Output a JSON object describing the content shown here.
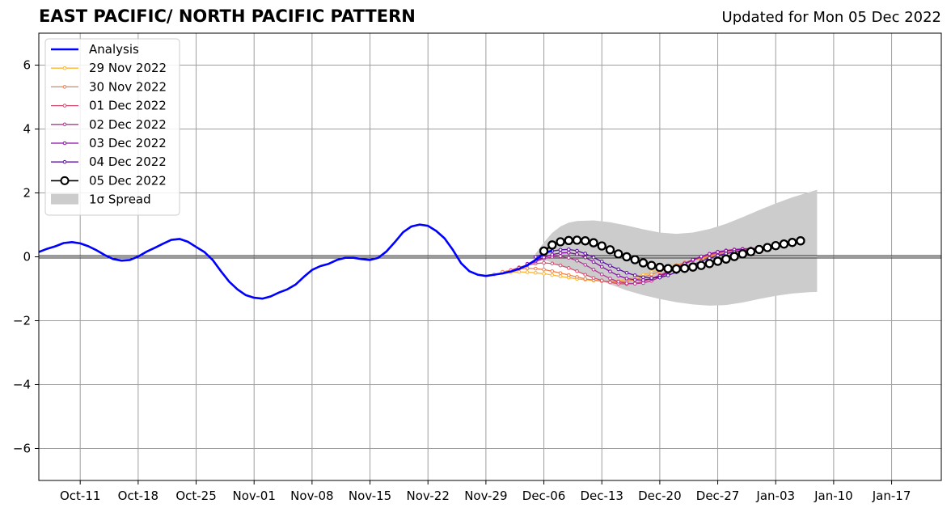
{
  "header": {
    "title": "EAST PACIFIC/ NORTH PACIFIC PATTERN",
    "updated": "Updated for Mon 05 Dec 2022"
  },
  "chart_data": {
    "type": "line",
    "title": "EAST PACIFIC/ NORTH PACIFIC PATTERN",
    "subtitle": "Updated for Mon 05 Dec 2022",
    "xlabel": "",
    "ylabel": "",
    "x_range": [
      "2022-10-06",
      "2023-01-23"
    ],
    "ylim": [
      -7,
      7
    ],
    "yticks": [
      6,
      4,
      2,
      0,
      -2,
      -4,
      -6
    ],
    "ytick_labels": [
      "6",
      "4",
      "2",
      "0",
      "−2",
      "−4",
      "−6"
    ],
    "xticks": [
      {
        "date": "2022-10-11",
        "label": "Oct-11"
      },
      {
        "date": "2022-10-18",
        "label": "Oct-18"
      },
      {
        "date": "2022-10-25",
        "label": "Oct-25"
      },
      {
        "date": "2022-11-01",
        "label": "Nov-01"
      },
      {
        "date": "2022-11-08",
        "label": "Nov-08"
      },
      {
        "date": "2022-11-15",
        "label": "Nov-15"
      },
      {
        "date": "2022-11-22",
        "label": "Nov-22"
      },
      {
        "date": "2022-11-29",
        "label": "Nov-29"
      },
      {
        "date": "2022-12-06",
        "label": "Dec-06"
      },
      {
        "date": "2022-12-13",
        "label": "Dec-13"
      },
      {
        "date": "2022-12-20",
        "label": "Dec-20"
      },
      {
        "date": "2022-12-27",
        "label": "Dec-27"
      },
      {
        "date": "2023-01-03",
        "label": "Jan-03"
      },
      {
        "date": "2023-01-10",
        "label": "Jan-10"
      },
      {
        "date": "2023-01-17",
        "label": "Jan-17"
      }
    ],
    "grid": true,
    "legend_position": "upper-left",
    "analysis": {
      "name": "Analysis",
      "color": "#0000ff",
      "points": [
        [
          "2022-10-06",
          0.15
        ],
        [
          "2022-10-07",
          0.25
        ],
        [
          "2022-10-08",
          0.33
        ],
        [
          "2022-10-09",
          0.43
        ],
        [
          "2022-10-10",
          0.46
        ],
        [
          "2022-10-11",
          0.42
        ],
        [
          "2022-10-12",
          0.33
        ],
        [
          "2022-10-13",
          0.2
        ],
        [
          "2022-10-14",
          0.05
        ],
        [
          "2022-10-15",
          -0.07
        ],
        [
          "2022-10-16",
          -0.12
        ],
        [
          "2022-10-17",
          -0.1
        ],
        [
          "2022-10-18",
          0.01
        ],
        [
          "2022-10-19",
          0.16
        ],
        [
          "2022-10-20",
          0.28
        ],
        [
          "2022-10-21",
          0.41
        ],
        [
          "2022-10-22",
          0.53
        ],
        [
          "2022-10-23",
          0.56
        ],
        [
          "2022-10-24",
          0.47
        ],
        [
          "2022-10-25",
          0.31
        ],
        [
          "2022-10-26",
          0.15
        ],
        [
          "2022-10-27",
          -0.1
        ],
        [
          "2022-10-28",
          -0.45
        ],
        [
          "2022-10-29",
          -0.78
        ],
        [
          "2022-10-30",
          -1.02
        ],
        [
          "2022-10-31",
          -1.2
        ],
        [
          "2022-11-01",
          -1.28
        ],
        [
          "2022-11-02",
          -1.31
        ],
        [
          "2022-11-03",
          -1.24
        ],
        [
          "2022-11-04",
          -1.12
        ],
        [
          "2022-11-05",
          -1.02
        ],
        [
          "2022-11-06",
          -0.87
        ],
        [
          "2022-11-07",
          -0.63
        ],
        [
          "2022-11-08",
          -0.41
        ],
        [
          "2022-11-09",
          -0.29
        ],
        [
          "2022-11-10",
          -0.22
        ],
        [
          "2022-11-11",
          -0.1
        ],
        [
          "2022-11-12",
          -0.03
        ],
        [
          "2022-11-13",
          -0.03
        ],
        [
          "2022-11-14",
          -0.07
        ],
        [
          "2022-11-15",
          -0.1
        ],
        [
          "2022-11-16",
          -0.03
        ],
        [
          "2022-11-17",
          0.17
        ],
        [
          "2022-11-18",
          0.46
        ],
        [
          "2022-11-19",
          0.77
        ],
        [
          "2022-11-20",
          0.95
        ],
        [
          "2022-11-21",
          1.01
        ],
        [
          "2022-11-22",
          0.97
        ],
        [
          "2022-11-23",
          0.81
        ],
        [
          "2022-11-24",
          0.58
        ],
        [
          "2022-11-25",
          0.22
        ],
        [
          "2022-11-26",
          -0.2
        ],
        [
          "2022-11-27",
          -0.45
        ],
        [
          "2022-11-28",
          -0.56
        ],
        [
          "2022-11-29",
          -0.6
        ],
        [
          "2022-11-30",
          -0.56
        ],
        [
          "2022-12-01",
          -0.52
        ],
        [
          "2022-12-02",
          -0.46
        ],
        [
          "2022-12-03",
          -0.38
        ],
        [
          "2022-12-04",
          -0.26
        ],
        [
          "2022-12-05",
          -0.1
        ],
        [
          "2022-12-06",
          0.1
        ],
        [
          "2022-12-07",
          0.2
        ]
      ]
    },
    "forecasts": [
      {
        "name": "29 Nov 2022",
        "color": "#fdb42f",
        "start": "2022-11-30",
        "values": [
          -0.55,
          -0.5,
          -0.48,
          -0.47,
          -0.48,
          -0.5,
          -0.53,
          -0.57,
          -0.61,
          -0.65,
          -0.69,
          -0.72,
          -0.74,
          -0.76,
          -0.77,
          -0.75,
          -0.7,
          -0.64,
          -0.56,
          -0.48,
          -0.4,
          -0.32,
          -0.25,
          -0.18,
          -0.11,
          -0.05,
          0.01,
          0.06,
          0.1,
          0.14,
          0.18,
          0.22,
          0.26,
          0.29,
          0.32
        ]
      },
      {
        "name": "30 Nov 2022",
        "color": "#f0804a",
        "start": "2022-12-01",
        "values": [
          -0.47,
          -0.42,
          -0.38,
          -0.36,
          -0.37,
          -0.4,
          -0.45,
          -0.51,
          -0.57,
          -0.63,
          -0.69,
          -0.73,
          -0.76,
          -0.78,
          -0.79,
          -0.77,
          -0.72,
          -0.64,
          -0.55,
          -0.46,
          -0.36,
          -0.27,
          -0.18,
          -0.1,
          -0.03,
          0.03,
          0.08,
          0.12,
          0.16,
          0.2,
          0.23,
          0.26,
          0.28,
          0.3
        ]
      },
      {
        "name": "01 Dec 2022",
        "color": "#d54f72",
        "start": "2022-12-02",
        "values": [
          -0.42,
          -0.33,
          -0.26,
          -0.21,
          -0.19,
          -0.21,
          -0.27,
          -0.35,
          -0.45,
          -0.56,
          -0.66,
          -0.74,
          -0.8,
          -0.84,
          -0.85,
          -0.83,
          -0.77,
          -0.68,
          -0.57,
          -0.45,
          -0.33,
          -0.21,
          -0.11,
          -0.02,
          0.06,
          0.12,
          0.17,
          0.2,
          0.23,
          0.25,
          0.27,
          0.28,
          0.29
        ]
      },
      {
        "name": "02 Dec 2022",
        "color": "#b43595",
        "start": "2022-12-03",
        "values": [
          -0.35,
          -0.25,
          -0.15,
          -0.06,
          0.0,
          0.02,
          -0.03,
          -0.12,
          -0.25,
          -0.4,
          -0.55,
          -0.68,
          -0.78,
          -0.83,
          -0.84,
          -0.82,
          -0.75,
          -0.64,
          -0.51,
          -0.37,
          -0.23,
          -0.11,
          0.0,
          0.09,
          0.16,
          0.2,
          0.23,
          0.25,
          0.26,
          0.27,
          0.28,
          0.29
        ]
      },
      {
        "name": "03 Dec 2022",
        "color": "#8a0aa5",
        "start": "2022-12-04",
        "values": [
          -0.22,
          -0.12,
          -0.02,
          0.07,
          0.12,
          0.13,
          0.08,
          -0.02,
          -0.16,
          -0.31,
          -0.46,
          -0.59,
          -0.68,
          -0.72,
          -0.73,
          -0.69,
          -0.6,
          -0.48,
          -0.35,
          -0.21,
          -0.09,
          0.01,
          0.09,
          0.15,
          0.19,
          0.22,
          0.24,
          0.25,
          0.26,
          0.27,
          0.28
        ]
      },
      {
        "name": "04 Dec 2022",
        "color": "#5a0ca0",
        "start": "2022-12-05",
        "values": [
          0.0,
          0.1,
          0.18,
          0.22,
          0.23,
          0.19,
          0.1,
          -0.02,
          -0.15,
          -0.28,
          -0.39,
          -0.5,
          -0.58,
          -0.64,
          -0.66,
          -0.65,
          -0.58,
          -0.48,
          -0.37,
          -0.25,
          -0.14,
          -0.04,
          0.04,
          0.1,
          0.15,
          0.19,
          0.22,
          0.24,
          0.26,
          0.27
        ]
      },
      {
        "name": "05 Dec 2022",
        "color": "#000000",
        "start": "2022-12-06",
        "values": [
          0.18,
          0.37,
          0.47,
          0.51,
          0.52,
          0.5,
          0.44,
          0.34,
          0.22,
          0.09,
          0.0,
          -0.09,
          -0.19,
          -0.27,
          -0.33,
          -0.37,
          -0.38,
          -0.36,
          -0.32,
          -0.27,
          -0.21,
          -0.14,
          -0.07,
          0.01,
          0.09,
          0.16,
          0.23,
          0.29,
          0.35,
          0.4,
          0.45,
          0.5
        ]
      }
    ],
    "spread": {
      "name": "1σ Spread",
      "color": "#cccccc",
      "points": [
        [
          "2022-12-05",
          0.1,
          -0.05
        ],
        [
          "2022-12-06",
          0.45,
          -0.1
        ],
        [
          "2022-12-07",
          0.75,
          -0.18
        ],
        [
          "2022-12-08",
          0.95,
          -0.27
        ],
        [
          "2022-12-09",
          1.07,
          -0.36
        ],
        [
          "2022-12-10",
          1.12,
          -0.46
        ],
        [
          "2022-12-12",
          1.14,
          -0.66
        ],
        [
          "2022-12-14",
          1.08,
          -0.86
        ],
        [
          "2022-12-16",
          0.98,
          -1.05
        ],
        [
          "2022-12-18",
          0.86,
          -1.2
        ],
        [
          "2022-12-20",
          0.76,
          -1.32
        ],
        [
          "2022-12-22",
          0.72,
          -1.42
        ],
        [
          "2022-12-24",
          0.76,
          -1.49
        ],
        [
          "2022-12-26",
          0.87,
          -1.53
        ],
        [
          "2022-12-28",
          1.03,
          -1.51
        ],
        [
          "2022-12-30",
          1.24,
          -1.43
        ],
        [
          "2023-01-01",
          1.46,
          -1.32
        ],
        [
          "2023-01-03",
          1.67,
          -1.22
        ],
        [
          "2023-01-05",
          1.86,
          -1.15
        ],
        [
          "2023-01-07",
          2.02,
          -1.11
        ],
        [
          "2023-01-08",
          2.1,
          -1.1
        ]
      ]
    }
  }
}
